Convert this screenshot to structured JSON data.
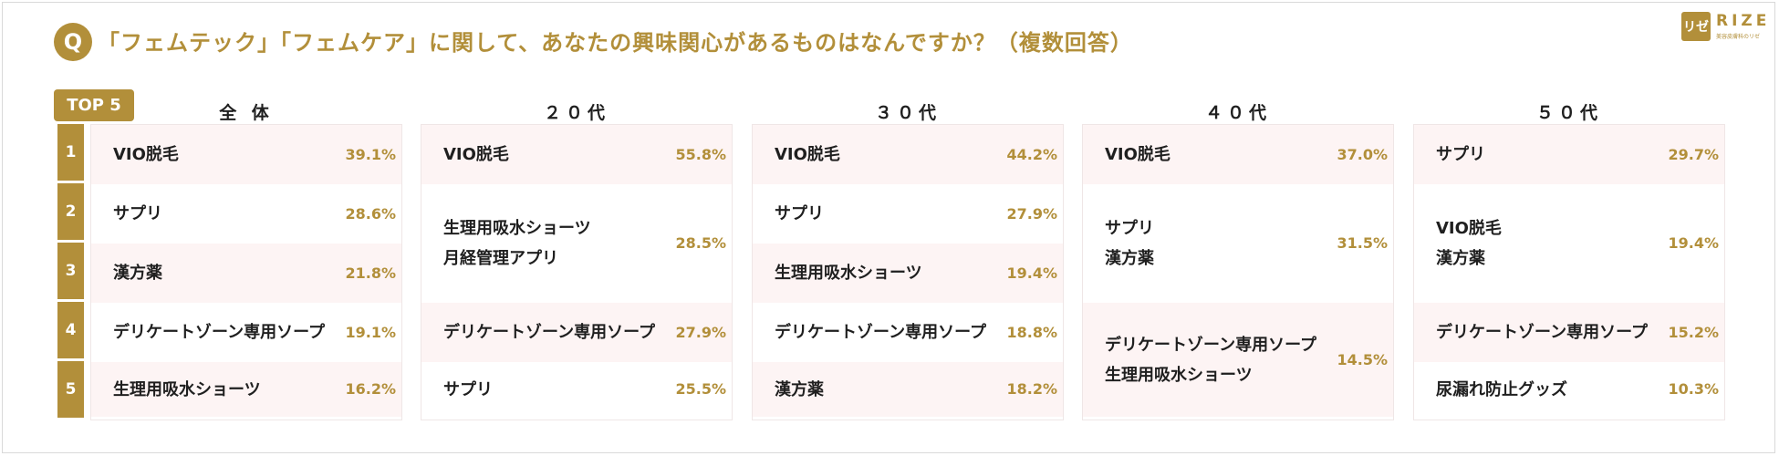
{
  "header": {
    "q_label": "Q",
    "title": "「フェムテック」「フェムケア」に関して、あなたの興味関心があるものはなんですか？（複数回答）"
  },
  "logo": {
    "mark": "リゼ",
    "text": "RIZE",
    "subtitle": "美容皮膚科のリゼ"
  },
  "top_label": "TOP 5",
  "ranks": [
    "1",
    "2",
    "3",
    "4",
    "5"
  ],
  "colors": {
    "accent": "#b28f3a",
    "row_tint": "#fdf4f4"
  },
  "chart_data": {
    "type": "table",
    "groups": [
      {
        "name": "全 体",
        "items": [
          {
            "rank_start": 1,
            "rank_end": 1,
            "labels": [
              "VIO脱毛"
            ],
            "value_text": "39.1%",
            "value": 39.1
          },
          {
            "rank_start": 2,
            "rank_end": 2,
            "labels": [
              "サプリ"
            ],
            "value_text": "28.6%",
            "value": 28.6
          },
          {
            "rank_start": 3,
            "rank_end": 3,
            "labels": [
              "漢方薬"
            ],
            "value_text": "21.8%",
            "value": 21.8
          },
          {
            "rank_start": 4,
            "rank_end": 4,
            "labels": [
              "デリケートゾーン専用ソープ"
            ],
            "value_text": "19.1%",
            "value": 19.1
          },
          {
            "rank_start": 5,
            "rank_end": 5,
            "labels": [
              "生理用吸水ショーツ"
            ],
            "value_text": "16.2%",
            "value": 16.2
          }
        ]
      },
      {
        "name": "２０代",
        "items": [
          {
            "rank_start": 1,
            "rank_end": 1,
            "labels": [
              "VIO脱毛"
            ],
            "value_text": "55.8%",
            "value": 55.8
          },
          {
            "rank_start": 2,
            "rank_end": 3,
            "labels": [
              "生理用吸水ショーツ",
              "月経管理アプリ"
            ],
            "value_text": "28.5%",
            "value": 28.5
          },
          {
            "rank_start": 4,
            "rank_end": 4,
            "labels": [
              "デリケートゾーン専用ソープ"
            ],
            "value_text": "27.9%",
            "value": 27.9
          },
          {
            "rank_start": 5,
            "rank_end": 5,
            "labels": [
              "サプリ"
            ],
            "value_text": "25.5%",
            "value": 25.5
          }
        ]
      },
      {
        "name": "３０代",
        "items": [
          {
            "rank_start": 1,
            "rank_end": 1,
            "labels": [
              "VIO脱毛"
            ],
            "value_text": "44.2%",
            "value": 44.2
          },
          {
            "rank_start": 2,
            "rank_end": 2,
            "labels": [
              "サプリ"
            ],
            "value_text": "27.9%",
            "value": 27.9
          },
          {
            "rank_start": 3,
            "rank_end": 3,
            "labels": [
              "生理用吸水ショーツ"
            ],
            "value_text": "19.4%",
            "value": 19.4
          },
          {
            "rank_start": 4,
            "rank_end": 4,
            "labels": [
              "デリケートゾーン専用ソープ"
            ],
            "value_text": "18.8%",
            "value": 18.8
          },
          {
            "rank_start": 5,
            "rank_end": 5,
            "labels": [
              "漢方薬"
            ],
            "value_text": "18.2%",
            "value": 18.2
          }
        ]
      },
      {
        "name": "４０代",
        "items": [
          {
            "rank_start": 1,
            "rank_end": 1,
            "labels": [
              "VIO脱毛"
            ],
            "value_text": "37.0%",
            "value": 37.0
          },
          {
            "rank_start": 2,
            "rank_end": 3,
            "labels": [
              "サプリ",
              "漢方薬"
            ],
            "value_text": "31.5%",
            "value": 31.5
          },
          {
            "rank_start": 4,
            "rank_end": 5,
            "labels": [
              "デリケートゾーン専用ソープ",
              "生理用吸水ショーツ"
            ],
            "value_text": "14.5%",
            "value": 14.5
          }
        ]
      },
      {
        "name": "５０代",
        "items": [
          {
            "rank_start": 1,
            "rank_end": 1,
            "labels": [
              "サプリ"
            ],
            "value_text": "29.7%",
            "value": 29.7
          },
          {
            "rank_start": 2,
            "rank_end": 3,
            "labels": [
              "VIO脱毛",
              "漢方薬"
            ],
            "value_text": "19.4%",
            "value": 19.4
          },
          {
            "rank_start": 4,
            "rank_end": 4,
            "labels": [
              "デリケートゾーン専用ソープ"
            ],
            "value_text": "15.2%",
            "value": 15.2
          },
          {
            "rank_start": 5,
            "rank_end": 5,
            "labels": [
              "尿漏れ防止グッズ"
            ],
            "value_text": "10.3%",
            "value": 10.3
          }
        ]
      }
    ]
  }
}
